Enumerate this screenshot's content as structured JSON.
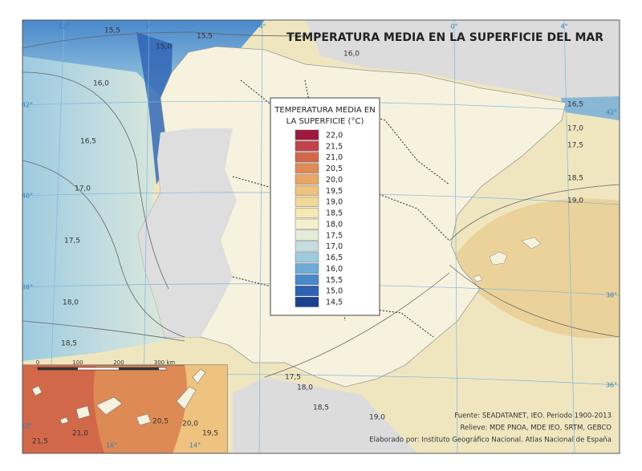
{
  "header": {
    "title": "TEMPERATURA MEDIA EN LA SUPERFICIE DEL MAR"
  },
  "legend": {
    "title": [
      "TEMPERATURA MEDIA EN",
      "LA SUPERFICIE (°C)"
    ],
    "items": [
      {
        "label": "22,0",
        "color": "#9e1a3f"
      },
      {
        "label": "21,5",
        "color": "#c2434a"
      },
      {
        "label": "21,0",
        "color": "#d2684a"
      },
      {
        "label": "20,5",
        "color": "#de8a55"
      },
      {
        "label": "20,0",
        "color": "#e8a766"
      },
      {
        "label": "19,5",
        "color": "#eec27f"
      },
      {
        "label": "19,0",
        "color": "#f2d898"
      },
      {
        "label": "18,5",
        "color": "#f5e8b3"
      },
      {
        "label": "18,0",
        "color": "#f3f0cc"
      },
      {
        "label": "17,5",
        "color": "#e3ecd6"
      },
      {
        "label": "17,0",
        "color": "#c4dde0"
      },
      {
        "label": "16,5",
        "color": "#9ccbe0"
      },
      {
        "label": "16,0",
        "color": "#6fabd8"
      },
      {
        "label": "15,5",
        "color": "#4a88cc"
      },
      {
        "label": "15,0",
        "color": "#2d62b3"
      },
      {
        "label": "14,5",
        "color": "#1a4290"
      }
    ]
  },
  "isolines": [
    "15,5",
    "15,5",
    "15,0",
    "16,0",
    "16,0",
    "16,5",
    "16,5",
    "17,0",
    "17,5",
    "18,5",
    "19,0",
    "17,0",
    "17,5",
    "18,0",
    "18,5",
    "17,5",
    "18,0",
    "18,5",
    "19,0",
    "21,0",
    "20,5",
    "20,0",
    "19,5",
    "21,5"
  ],
  "graticule": [
    "12°",
    "8°",
    "4°",
    "0°",
    "4°",
    "42°",
    "40°",
    "38°",
    "42°",
    "38°",
    "36°",
    "18°",
    "16°",
    "14°"
  ],
  "scale_bar": [
    "0",
    "100",
    "200",
    "300 km"
  ],
  "sources": [
    "Fuente: SEADATANET, IEO. Periodo 1900-2013",
    "Relieve: MDE PNOA, MDE IEO, SRTM, GEBCO",
    "Elaborado por: Instituto Geográfico Nacional. Atlas Nacional de España"
  ]
}
